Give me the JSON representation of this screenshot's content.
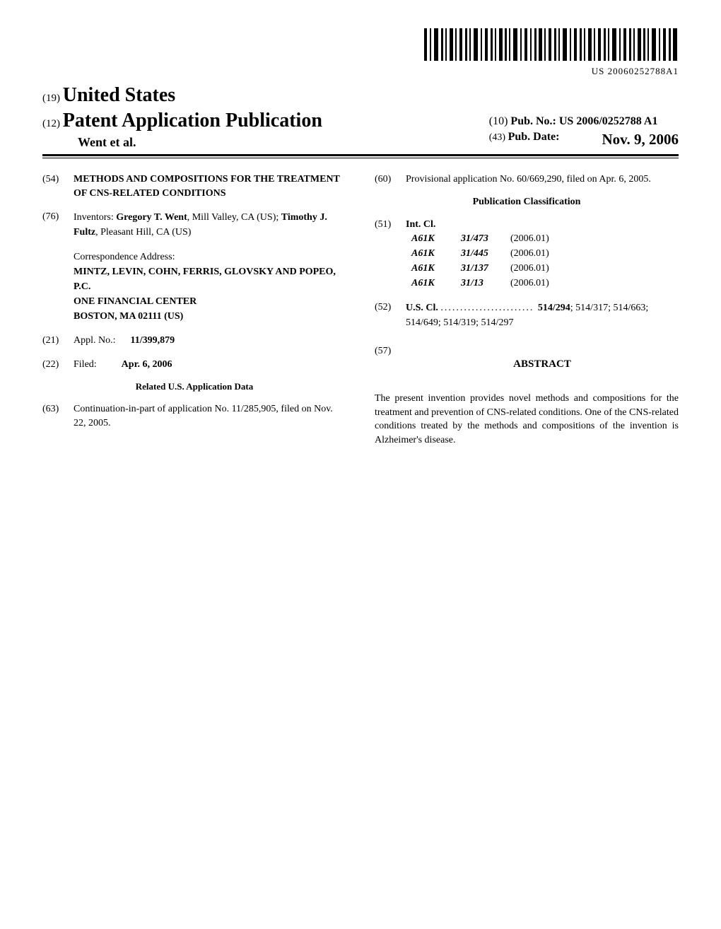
{
  "barcode": {
    "text": "US 20060252788A1"
  },
  "header": {
    "country_code": "(19)",
    "country_name": "United States",
    "doc_code": "(12)",
    "doc_title": "Patent Application Publication",
    "authors": "Went et al.",
    "pub_no_code": "(10)",
    "pub_no_label": "Pub. No.:",
    "pub_no_value": "US 2006/0252788 A1",
    "pub_date_code": "(43)",
    "pub_date_label": "Pub. Date:",
    "pub_date_value": "Nov. 9, 2006"
  },
  "left": {
    "title_code": "(54)",
    "title": "METHODS AND COMPOSITIONS FOR THE TREATMENT OF CNS-RELATED CONDITIONS",
    "inventors_code": "(76)",
    "inventors_label": "Inventors:",
    "inventors": [
      {
        "name": "Gregory T. Went",
        "loc": "Mill Valley, CA (US)"
      },
      {
        "name": "Timothy J. Fultz",
        "loc": "Pleasant Hill, CA (US)"
      }
    ],
    "corr_label": "Correspondence Address:",
    "corr_lines": [
      "MINTZ, LEVIN, COHN, FERRIS, GLOVSKY AND POPEO, P.C.",
      "ONE FINANCIAL CENTER",
      "BOSTON, MA 02111 (US)"
    ],
    "appl_code": "(21)",
    "appl_label": "Appl. No.:",
    "appl_value": "11/399,879",
    "filed_code": "(22)",
    "filed_label": "Filed:",
    "filed_value": "Apr. 6, 2006",
    "related_heading": "Related U.S. Application Data",
    "cont_code": "(63)",
    "cont_text": "Continuation-in-part of application No. 11/285,905, filed on Nov. 22, 2005."
  },
  "right": {
    "prov_code": "(60)",
    "prov_text": "Provisional application No. 60/669,290, filed on Apr. 6, 2005.",
    "pub_class_heading": "Publication Classification",
    "intcl_code": "(51)",
    "intcl_label": "Int. Cl.",
    "intcl": [
      {
        "a": "A61K",
        "b": "31/473",
        "y": "(2006.01)"
      },
      {
        "a": "A61K",
        "b": "31/445",
        "y": "(2006.01)"
      },
      {
        "a": "A61K",
        "b": "31/137",
        "y": "(2006.01)"
      },
      {
        "a": "A61K",
        "b": "31/13",
        "y": "(2006.01)"
      }
    ],
    "uscl_code": "(52)",
    "uscl_label": "U.S. Cl.",
    "uscl_primary": "514/294",
    "uscl_rest": "; 514/317; 514/663; 514/649; 514/319; 514/297",
    "abstract_code": "(57)",
    "abstract_heading": "ABSTRACT",
    "abstract_text": "The present invention provides novel methods and compositions for the treatment and prevention of CNS-related conditions. One of the CNS-related conditions treated by the methods and compositions of the invention is Alzheimer's disease."
  }
}
